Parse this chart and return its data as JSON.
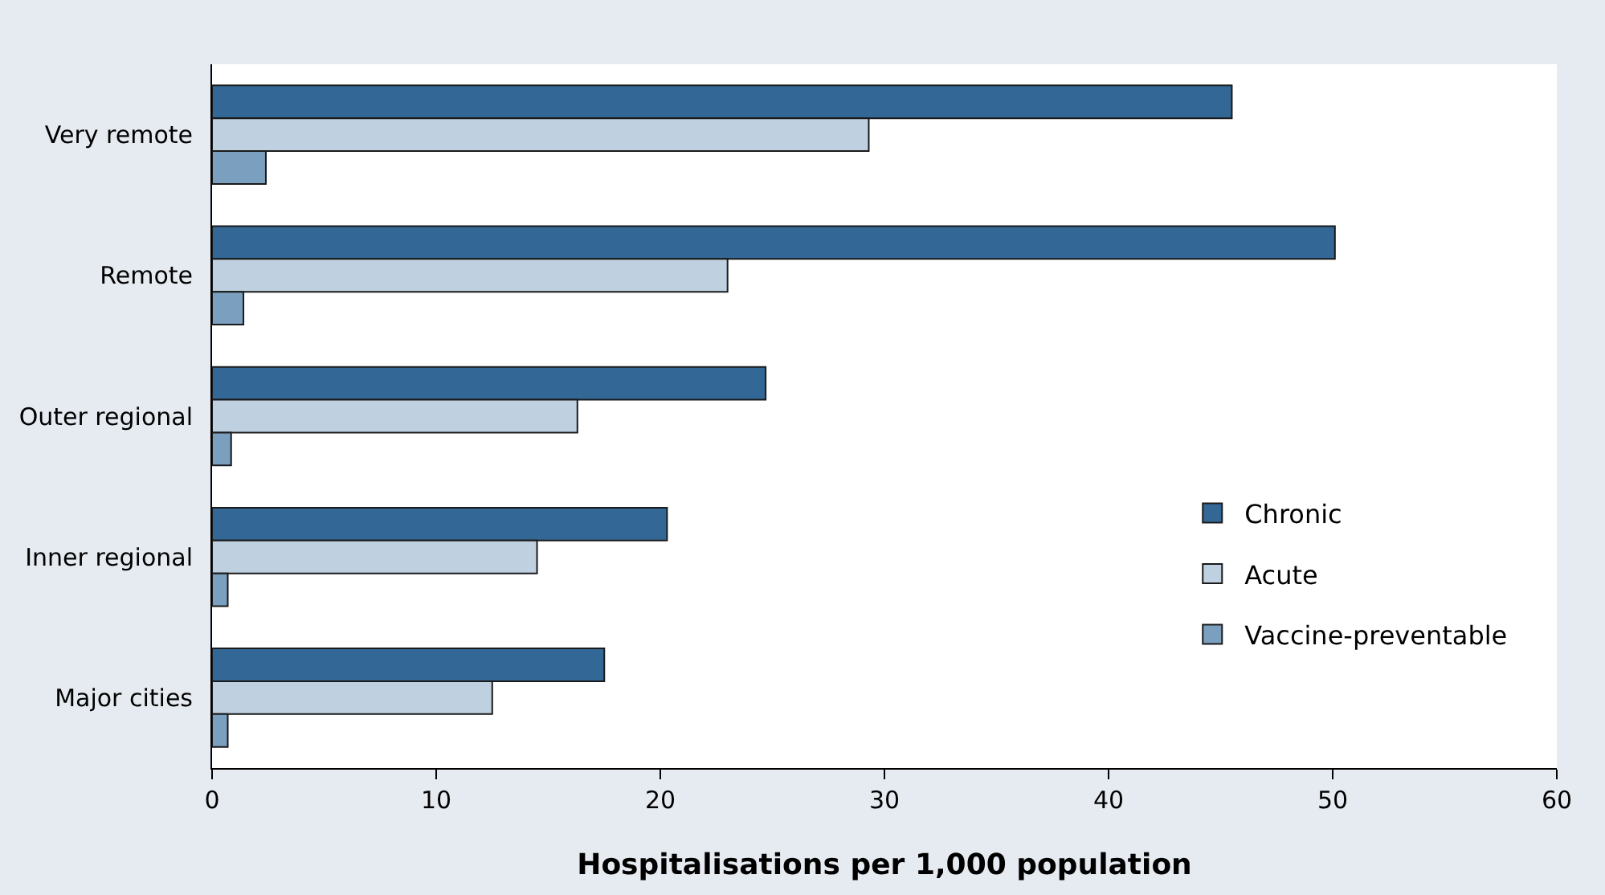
{
  "chart_data": {
    "type": "bar",
    "orientation": "horizontal",
    "xlabel": "Hospitalisations per 1,000 population",
    "categories": [
      "Very remote",
      "Remote",
      "Outer regional",
      "Inner regional",
      "Major cities"
    ],
    "series": [
      {
        "name": "Chronic",
        "color": "#336796",
        "values": [
          45.5,
          50.1,
          24.7,
          20.3,
          17.5
        ]
      },
      {
        "name": "Acute",
        "color": "#bfd1e0",
        "values": [
          29.3,
          23.0,
          16.3,
          14.5,
          12.5
        ]
      },
      {
        "name": "Vaccine-preventable",
        "color": "#7a9fbf",
        "values": [
          2.4,
          1.4,
          0.85,
          0.7,
          0.7
        ]
      }
    ],
    "xlim": [
      0,
      60
    ],
    "xticks": [
      0,
      10,
      20,
      30,
      40,
      50,
      60
    ],
    "legend": "bottom right"
  }
}
